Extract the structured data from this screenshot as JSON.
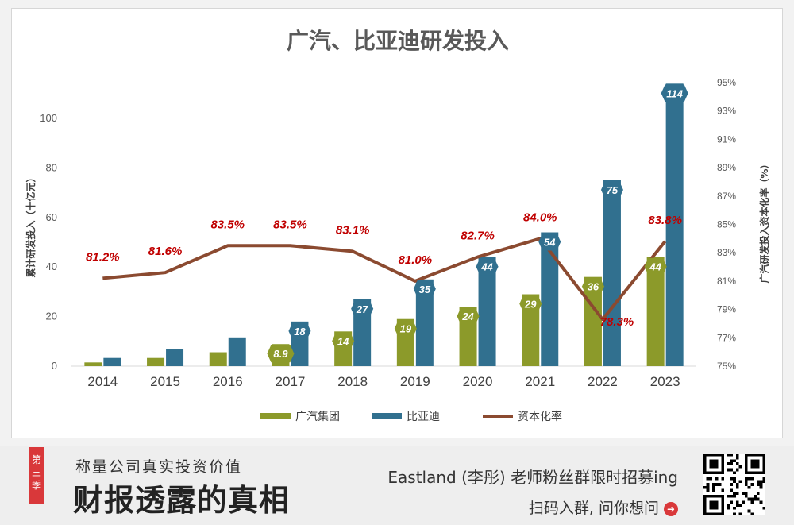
{
  "chart_data": {
    "type": "bar",
    "title": "广汽、比亚迪研发投入",
    "categories": [
      "2014",
      "2015",
      "2016",
      "2017",
      "2018",
      "2019",
      "2020",
      "2021",
      "2022",
      "2023"
    ],
    "series": [
      {
        "name": "广汽集团",
        "kind": "bar",
        "color": "#8c9a2a",
        "values": [
          1.5,
          3.3,
          5.6,
          8.9,
          14,
          19,
          24,
          29,
          36,
          44
        ],
        "labels": [
          "",
          "",
          "",
          "8.9",
          "14",
          "19",
          "24",
          "29",
          "36",
          "44"
        ]
      },
      {
        "name": "比亚迪",
        "kind": "bar",
        "color": "#31708f",
        "values": [
          3.3,
          7.0,
          11.6,
          18,
          27,
          35,
          44,
          54,
          75,
          114
        ],
        "labels": [
          "",
          "",
          "",
          "18",
          "27",
          "35",
          "44",
          "54",
          "75",
          "114"
        ]
      },
      {
        "name": "资本化率",
        "kind": "line",
        "axis": "right",
        "color": "#8b4a30",
        "values": [
          81.2,
          81.6,
          83.5,
          83.5,
          83.1,
          81.0,
          82.7,
          84.0,
          78.3,
          83.8
        ],
        "labels": [
          "81.2%",
          "81.6%",
          "83.5%",
          "83.5%",
          "83.1%",
          "81.0%",
          "82.7%",
          "84.0%",
          "78.3%",
          "83.8%"
        ]
      }
    ],
    "ylabel": "累计研发投入（十亿元）",
    "ylim": [
      0,
      120
    ],
    "yticks": [
      0,
      20,
      40,
      60,
      80,
      100
    ],
    "y2label": "广汽研发投入资本化率（%）",
    "y2lim": [
      75,
      95
    ],
    "y2ticks": [
      "75%",
      "77%",
      "79%",
      "81%",
      "83%",
      "85%",
      "87%",
      "89%",
      "91%",
      "93%",
      "95%"
    ],
    "legend": "bottom",
    "grid": false
  },
  "footer": {
    "badge": "第三季",
    "subtitle": "称量公司真实投资价值",
    "main_title": "财报透露的真相",
    "promo": "Eastland (李彤) 老师粉丝群限时招募ing",
    "cta": "扫码入群, 问你想问"
  }
}
